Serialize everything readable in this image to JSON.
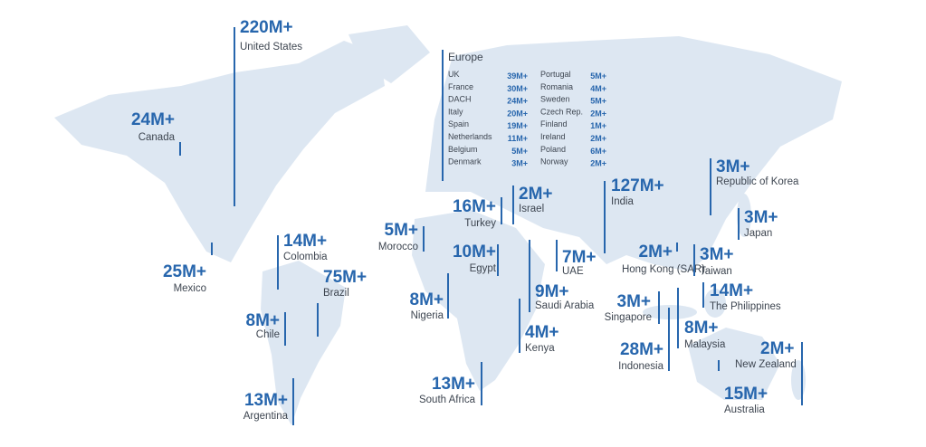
{
  "regions": [
    {
      "value": "220M+",
      "name": "United States"
    },
    {
      "value": "24M+",
      "name": "Canada"
    },
    {
      "value": "25M+",
      "name": "Mexico"
    },
    {
      "value": "14M+",
      "name": "Colombia"
    },
    {
      "value": "75M+",
      "name": "Brazil"
    },
    {
      "value": "8M+",
      "name": "Chile"
    },
    {
      "value": "13M+",
      "name": "Argentina"
    },
    {
      "value": "5M+",
      "name": "Morocco"
    },
    {
      "value": "16M+",
      "name": "Turkey"
    },
    {
      "value": "2M+",
      "name": "Israel"
    },
    {
      "value": "10M+",
      "name": "Egypt"
    },
    {
      "value": "8M+",
      "name": "Nigeria"
    },
    {
      "value": "7M+",
      "name": "UAE"
    },
    {
      "value": "9M+",
      "name": "Saudi Arabia"
    },
    {
      "value": "4M+",
      "name": "Kenya"
    },
    {
      "value": "13M+",
      "name": "South Africa"
    },
    {
      "value": "127M+",
      "name": "India"
    },
    {
      "value": "2M+",
      "name": "Hong Kong (SAR)"
    },
    {
      "value": "3M+",
      "name": "Taiwan"
    },
    {
      "value": "3M+",
      "name": "Singapore"
    },
    {
      "value": "14M+",
      "name": "The Philippines"
    },
    {
      "value": "28M+",
      "name": "Indonesia"
    },
    {
      "value": "8M+",
      "name": "Malaysia"
    },
    {
      "value": "3M+",
      "name": "Republic of Korea"
    },
    {
      "value": "3M+",
      "name": "Japan"
    },
    {
      "value": "2M+",
      "name": "New Zealand"
    },
    {
      "value": "15M+",
      "name": "Australia"
    }
  ],
  "europe": {
    "title": "Europe",
    "rows": [
      [
        {
          "name": "UK",
          "value": "39M+"
        },
        {
          "name": "Portugal",
          "value": "5M+"
        }
      ],
      [
        {
          "name": "France",
          "value": "30M+"
        },
        {
          "name": "Romania",
          "value": "4M+"
        }
      ],
      [
        {
          "name": "DACH",
          "value": "24M+"
        },
        {
          "name": "Sweden",
          "value": "5M+"
        }
      ],
      [
        {
          "name": "Italy",
          "value": "20M+"
        },
        {
          "name": "Czech Rep.",
          "value": "2M+"
        }
      ],
      [
        {
          "name": "Spain",
          "value": "19M+"
        },
        {
          "name": "Finland",
          "value": "1M+"
        }
      ],
      [
        {
          "name": "Netherlands",
          "value": "11M+"
        },
        {
          "name": "Ireland",
          "value": "2M+"
        }
      ],
      [
        {
          "name": "Belgium",
          "value": "5M+"
        },
        {
          "name": "Poland",
          "value": "6M+"
        }
      ],
      [
        {
          "name": "Denmark",
          "value": "3M+"
        },
        {
          "name": "Norway",
          "value": "2M+"
        }
      ]
    ]
  }
}
